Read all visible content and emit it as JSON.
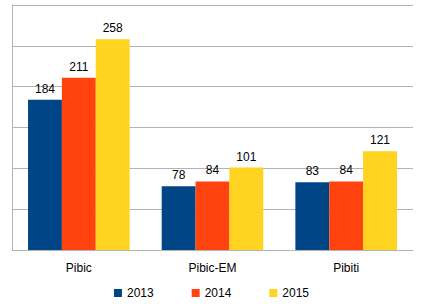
{
  "chart_data": {
    "type": "bar",
    "categories": [
      "Pibic",
      "Pibic-EM",
      "Pibiti"
    ],
    "series": [
      {
        "name": "2013",
        "color": "#004586",
        "values": [
          184,
          78,
          83
        ]
      },
      {
        "name": "2014",
        "color": "#ff420e",
        "values": [
          211,
          84,
          84
        ]
      },
      {
        "name": "2015",
        "color": "#ffd320",
        "values": [
          258,
          101,
          121
        ]
      }
    ],
    "ylim": [
      0,
      300
    ],
    "yticks": [
      0,
      50,
      100,
      150,
      200,
      250,
      300
    ],
    "grid": true,
    "legend": "bottom",
    "data_labels": true,
    "tick_labels": "x"
  }
}
